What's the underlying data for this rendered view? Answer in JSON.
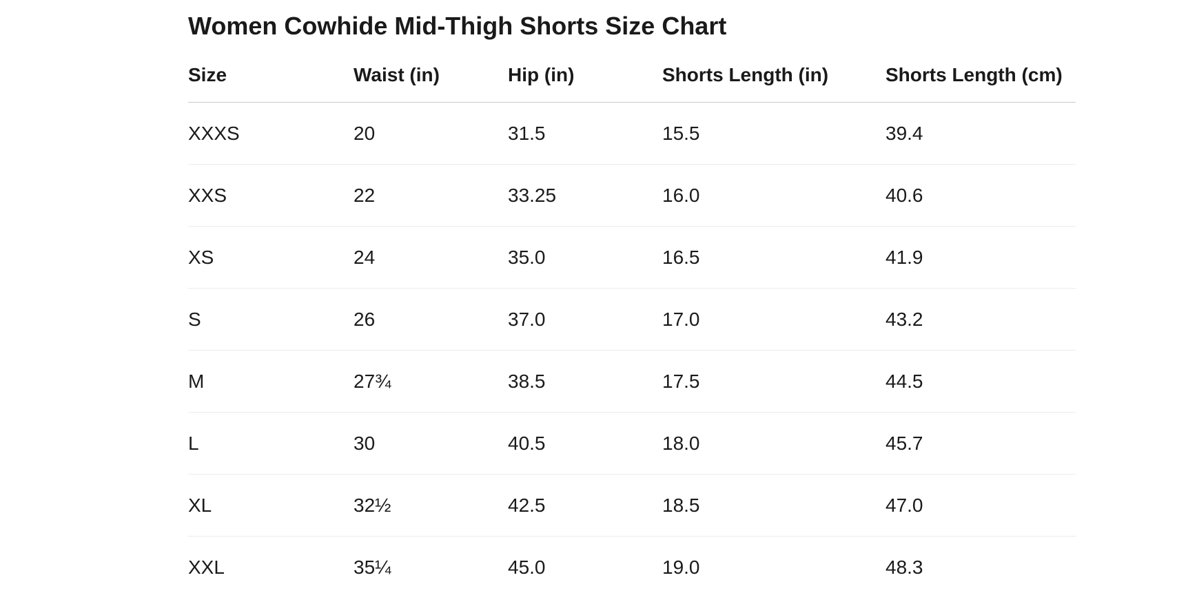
{
  "title": "Women Cowhide Mid-Thigh Shorts Size Chart",
  "table": {
    "headers": [
      "Size",
      "Waist (in)",
      "Hip (in)",
      "Shorts Length (in)",
      "Shorts Length (cm)"
    ],
    "rows": [
      [
        "XXXS",
        "20",
        "31.5",
        "15.5",
        "39.4"
      ],
      [
        "XXS",
        "22",
        "33.25",
        "16.0",
        "40.6"
      ],
      [
        "XS",
        "24",
        "35.0",
        "16.5",
        "41.9"
      ],
      [
        "S",
        "26",
        "37.0",
        "17.0",
        "43.2"
      ],
      [
        "M",
        "27¾",
        "38.5",
        "17.5",
        "44.5"
      ],
      [
        "L",
        "30",
        "40.5",
        "18.0",
        "45.7"
      ],
      [
        "XL",
        "32½",
        "42.5",
        "18.5",
        "47.0"
      ],
      [
        "XXL",
        "35¼",
        "45.0",
        "19.0",
        "48.3"
      ]
    ]
  }
}
